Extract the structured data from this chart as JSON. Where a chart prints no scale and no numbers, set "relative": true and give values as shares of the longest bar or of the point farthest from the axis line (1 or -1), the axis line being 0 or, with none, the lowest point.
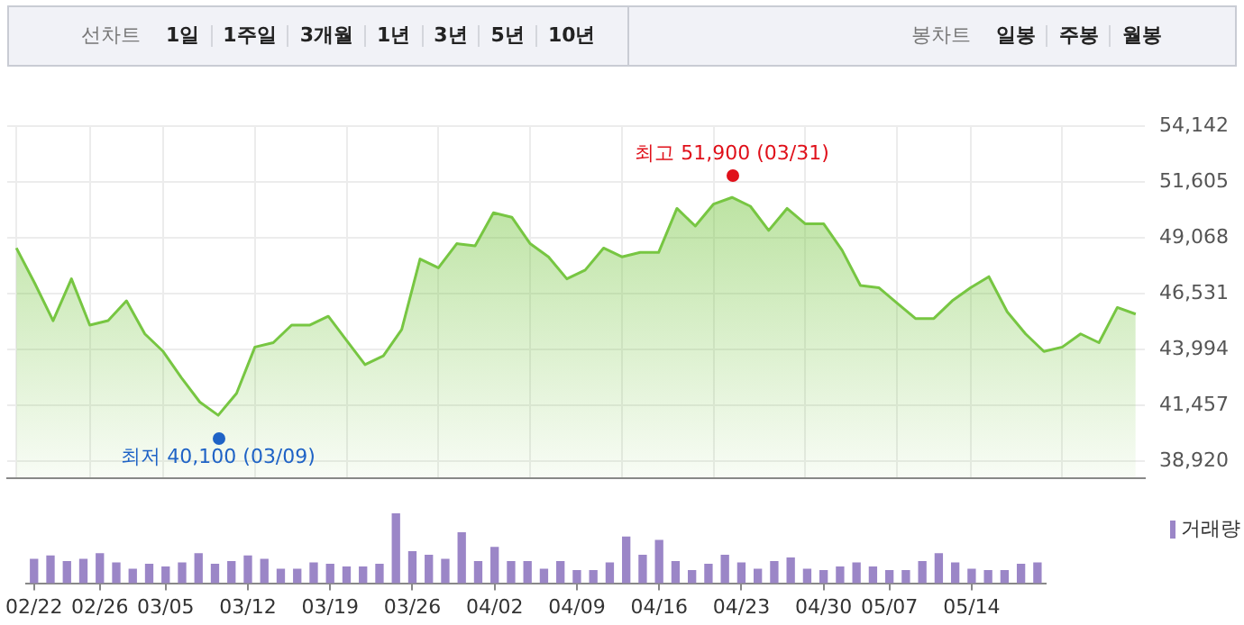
{
  "chart_data": [
    {
      "type": "area",
      "grid": true,
      "tick_labels": "y",
      "categories": [
        null,
        null,
        null,
        null,
        null,
        null,
        null,
        null,
        null,
        null,
        null,
        null,
        null,
        null,
        null,
        null,
        null,
        null,
        null,
        null,
        null,
        null,
        null,
        null,
        null,
        null,
        null,
        null,
        null,
        null,
        null,
        null,
        null,
        null,
        null,
        null,
        null,
        null,
        null,
        null,
        null,
        null,
        null,
        null,
        null,
        null,
        null,
        null,
        null,
        null,
        null,
        null,
        null,
        null,
        null,
        null,
        null,
        null,
        null,
        null,
        null,
        null
      ],
      "series": [
        {
          "color": "#77c642",
          "values": [
            48600,
            47000,
            45300,
            47200,
            45100,
            45300,
            46200,
            44700,
            43900,
            42700,
            41600,
            41000,
            42000,
            44100,
            44300,
            45100,
            45100,
            45500,
            44400,
            43300,
            43700,
            44900,
            48100,
            47700,
            48800,
            48700,
            50200,
            50000,
            48800,
            48200,
            47200,
            47600,
            48600,
            48200,
            48400,
            48400,
            50400,
            49600,
            50600,
            50900,
            50500,
            49400,
            50400,
            49700,
            49700,
            48500,
            46900,
            46800,
            46100,
            45400,
            45400,
            46200,
            46800,
            47300,
            45700,
            44700,
            43900,
            44100,
            44700,
            44300,
            45900,
            45600
          ]
        }
      ],
      "ylim": [
        38150,
        54142
      ],
      "yticks": [
        {
          "value": 38920,
          "label": "38,920"
        },
        {
          "value": 41457,
          "label": "41,457"
        },
        {
          "value": 43994,
          "label": "43,994"
        },
        {
          "value": 46531,
          "label": "46,531"
        },
        {
          "value": 49068,
          "label": "49,068"
        },
        {
          "value": 51605,
          "label": "51,605"
        },
        {
          "value": 54142,
          "label": "54,142"
        }
      ],
      "annotations": [
        "선차트",
        "1일",
        "1주일",
        "3개월",
        "1년",
        "3년",
        "5년",
        "10년",
        "봉차트",
        "일봉",
        "주봉",
        "월봉",
        "최고 51,900 (03/31)",
        "최저 40,100 (03/09)"
      ]
    },
    {
      "type": "bar",
      "relative": true,
      "tick_labels": "x",
      "legend": "top right",
      "categories": [
        "02/22",
        null,
        null,
        null,
        "02/26",
        null,
        null,
        null,
        "03/05",
        null,
        null,
        null,
        null,
        "03/12",
        null,
        null,
        null,
        null,
        "03/19",
        null,
        null,
        null,
        null,
        "03/26",
        null,
        null,
        null,
        null,
        "04/02",
        null,
        null,
        null,
        null,
        "04/09",
        null,
        null,
        null,
        null,
        "04/16",
        null,
        null,
        null,
        null,
        "04/23",
        null,
        null,
        null,
        null,
        "04/30",
        null,
        null,
        null,
        "05/07",
        null,
        null,
        null,
        null,
        "05/14",
        null,
        null,
        null,
        null
      ],
      "series": [
        {
          "name": "거래량",
          "color": "#9b86c7",
          "values": [
            0.34,
            0.39,
            0.31,
            0.34,
            0.42,
            0.29,
            0.2,
            0.27,
            0.23,
            0.29,
            0.42,
            0.27,
            0.31,
            0.39,
            0.34,
            0.2,
            0.2,
            0.29,
            0.27,
            0.23,
            0.23,
            0.27,
            1,
            0.45,
            0.4,
            0.34,
            0.72,
            0.31,
            0.51,
            0.31,
            0.31,
            0.2,
            0.31,
            0.18,
            0.18,
            0.29,
            0.66,
            0.4,
            0.61,
            0.31,
            0.18,
            0.27,
            0.4,
            0.29,
            0.2,
            0.31,
            0.36,
            0.2,
            0.18,
            0.23,
            0.29,
            0.23,
            0.18,
            0.18,
            0.31,
            0.42,
            0.29,
            0.2,
            0.18,
            0.18,
            0.27,
            0.29
          ]
        }
      ]
    }
  ]
}
